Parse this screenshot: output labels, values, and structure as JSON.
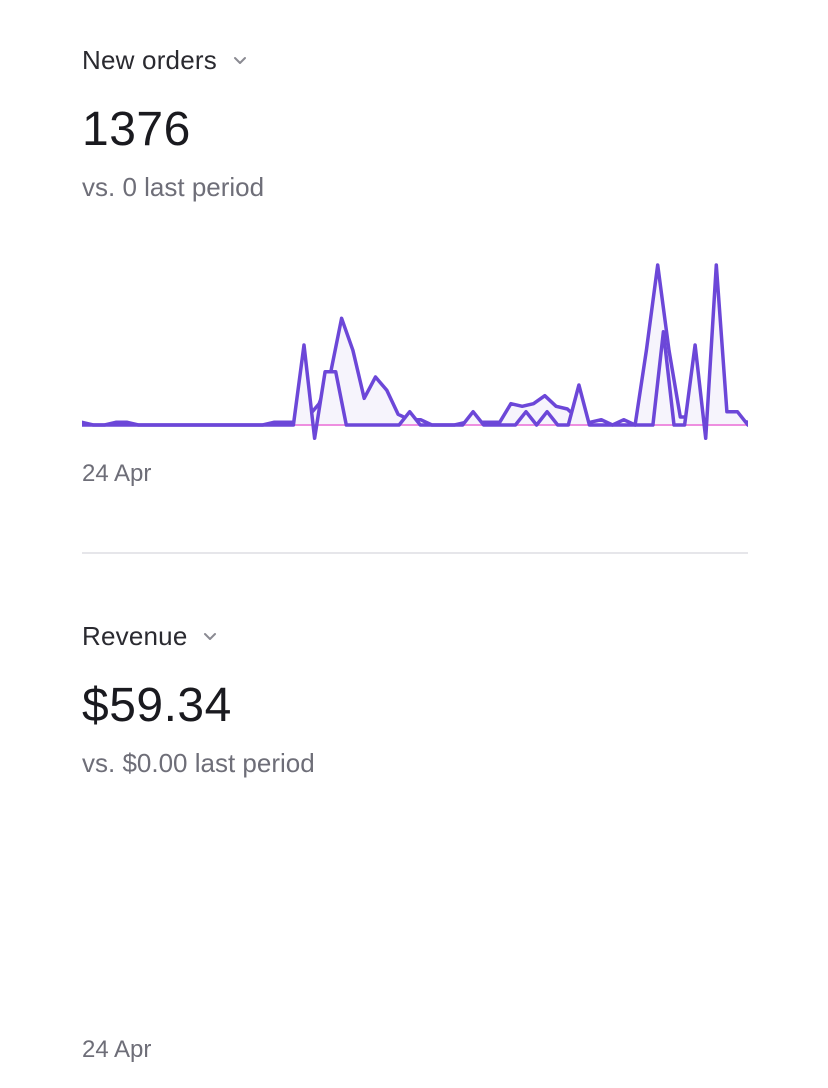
{
  "metrics": [
    {
      "title": "New orders",
      "value": "1376",
      "compare": "vs. 0 last period",
      "date_label": "24 Apr"
    },
    {
      "title": "Revenue",
      "value": "$59.34",
      "compare": "vs. $0.00 last period",
      "date_label": "24 Apr"
    }
  ],
  "icons": {
    "dropdown": "chevron-down-icon"
  },
  "colors": {
    "series_line": "#6c47d8",
    "series_fill": "#f6f4fc",
    "baseline": "#ee8fe0",
    "divider": "#e6e6ea",
    "muted_text": "#6e6e78"
  },
  "chart_data": [
    {
      "type": "area",
      "series": [
        {
          "values": [
            1,
            0,
            0,
            1,
            1,
            0,
            0,
            0,
            0,
            0,
            0,
            0,
            0,
            0,
            0,
            0,
            0,
            1,
            1,
            1,
            3,
            8,
            19,
            40,
            28,
            10,
            18,
            13,
            4,
            2,
            2,
            0,
            0,
            0,
            1,
            1,
            1,
            1,
            8,
            7,
            8,
            11,
            7,
            6,
            2,
            1,
            2,
            0,
            2,
            0,
            28,
            60,
            28,
            3,
            3,
            2,
            2,
            4,
            2,
            1
          ]
        },
        {
          "values": [
            0,
            0,
            0,
            0,
            0,
            0,
            0,
            0,
            0,
            0,
            0,
            0,
            0,
            0,
            0,
            0,
            0,
            0,
            0,
            0,
            0,
            6,
            -1,
            4,
            4,
            0,
            0,
            0,
            0,
            0,
            0,
            1,
            0,
            0,
            0,
            0,
            0,
            1,
            0,
            0,
            0,
            0,
            1,
            0,
            1,
            0,
            0,
            3,
            0,
            0,
            0,
            0,
            0,
            0,
            0,
            7,
            0,
            0,
            6,
            -1,
            12,
            1,
            1,
            0
          ]
        }
      ]
    }
  ]
}
